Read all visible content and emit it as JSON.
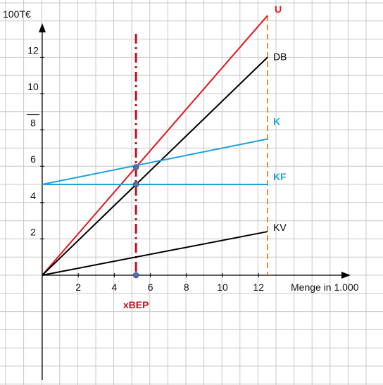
{
  "chart_data": {
    "type": "line",
    "ylabel": "100T€",
    "xlabel": "Menge in 1.000",
    "xlim": [
      0,
      13
    ],
    "ylim": [
      0,
      14
    ],
    "x_ticks": [
      2,
      4,
      6,
      8,
      10,
      12
    ],
    "y_ticks": [
      2,
      4,
      6,
      8,
      10,
      12
    ],
    "grid": true,
    "series": [
      {
        "name": "U",
        "color": "#e3161d",
        "label_bold": true,
        "x": [
          0,
          12.5
        ],
        "y": [
          0,
          14.3
        ]
      },
      {
        "name": "DB",
        "color": "#000000",
        "label_bold": false,
        "x": [
          0,
          12.5
        ],
        "y": [
          0,
          12.0
        ]
      },
      {
        "name": "K",
        "color": "#1fa2de",
        "label_bold": true,
        "x": [
          0,
          12.5
        ],
        "y": [
          5.0,
          7.5
        ]
      },
      {
        "name": "KF",
        "color": "#1fa2de",
        "label_bold": true,
        "x": [
          0,
          12.5
        ],
        "y": [
          5.0,
          5.0
        ]
      },
      {
        "name": "KV",
        "color": "#000000",
        "label_bold": false,
        "x": [
          0,
          12.5
        ],
        "y": [
          0,
          2.4
        ]
      }
    ],
    "reference_lines": [
      {
        "name": "xBEP",
        "orientation": "vertical",
        "x": 5.2,
        "color": "#c0121f",
        "style": "dash-dot",
        "label_bold": true
      },
      {
        "name": "",
        "orientation": "vertical",
        "x": 12.5,
        "color": "#f08a30",
        "style": "dashed"
      }
    ],
    "markers": [
      {
        "x": 5.2,
        "y": 5.95
      },
      {
        "x": 5.2,
        "y": 5.0
      },
      {
        "x": 5.2,
        "y": 0
      }
    ]
  }
}
